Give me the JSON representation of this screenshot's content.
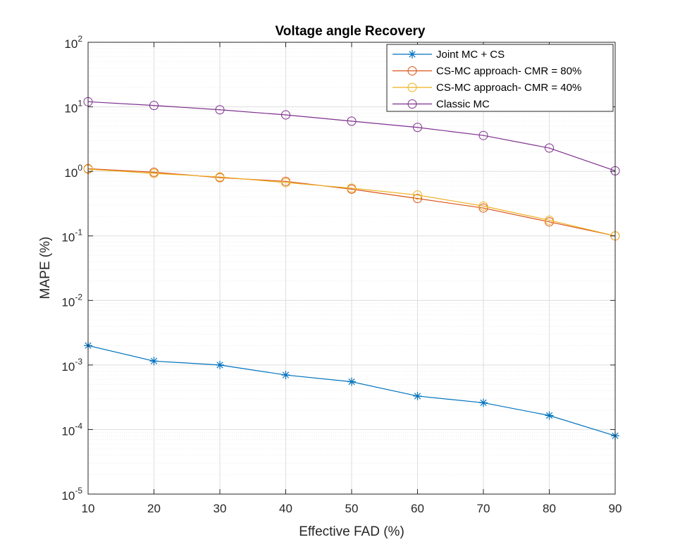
{
  "chart_data": {
    "type": "line",
    "title": "Voltage angle Recovery",
    "xlabel": "Effective FAD (%)",
    "ylabel": "MAPE (%)",
    "xlim": [
      10,
      90
    ],
    "ylim": [
      1e-05,
      100
    ],
    "yscale": "log",
    "grid": true,
    "legend_position": "top-right",
    "x": [
      10,
      20,
      30,
      40,
      50,
      60,
      70,
      80,
      90
    ],
    "x_tick_labels": [
      "10",
      "20",
      "30",
      "40",
      "50",
      "60",
      "70",
      "80",
      "90"
    ],
    "y_tick_labels": [
      {
        "base": "10",
        "exp": "-5"
      },
      {
        "base": "10",
        "exp": "-4"
      },
      {
        "base": "10",
        "exp": "-3"
      },
      {
        "base": "10",
        "exp": "-2"
      },
      {
        "base": "10",
        "exp": "-1"
      },
      {
        "base": "10",
        "exp": "0"
      },
      {
        "base": "10",
        "exp": "1"
      },
      {
        "base": "10",
        "exp": "2"
      }
    ],
    "series": [
      {
        "name": "Joint MC  + CS",
        "color": "#0072bd",
        "marker": "asterisk",
        "values": [
          0.002,
          0.00115,
          0.001,
          0.0007,
          0.00055,
          0.00033,
          0.00026,
          0.000165,
          8e-05
        ]
      },
      {
        "name": "CS-MC approach- CMR = 80%",
        "color": "#d95319",
        "marker": "circle",
        "values": [
          1.1,
          0.97,
          0.8,
          0.7,
          0.53,
          0.38,
          0.27,
          0.165,
          0.1
        ]
      },
      {
        "name": "CS-MC approach- CMR = 40%",
        "color": "#edb120",
        "marker": "circle",
        "values": [
          1.08,
          0.93,
          0.82,
          0.67,
          0.55,
          0.43,
          0.29,
          0.175,
          0.1
        ]
      },
      {
        "name": "Classic MC",
        "color": "#7e2f8e",
        "marker": "circle",
        "values": [
          12,
          10.5,
          9.0,
          7.5,
          6.0,
          4.8,
          3.6,
          2.3,
          1.02
        ]
      }
    ]
  }
}
